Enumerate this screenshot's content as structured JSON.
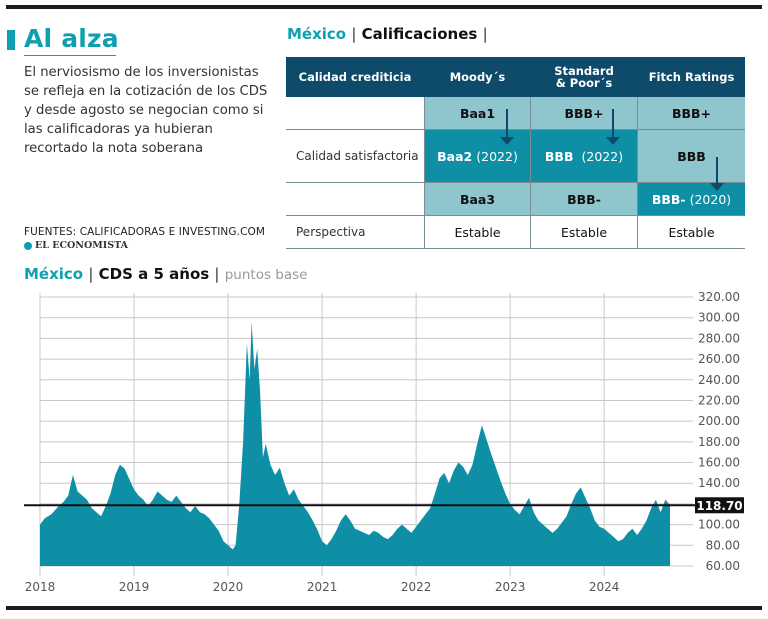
{
  "intro": {
    "headline": "Al alza",
    "text": "El nerviosismo de los inversionistas se refleja en la cotización de los CDS y desde agosto se negocian como si las calificadoras ya hubieran recortado la nota soberana",
    "sources": "FUENTES: CALIFICADORAS E INVESTING.COM",
    "brand": "EL ECONOMISTA"
  },
  "ratings": {
    "title_country": "México",
    "title_sep": "|",
    "title_main": "Calificaciones",
    "title_end": "|",
    "headers": [
      "Calidad crediticia",
      "Moody´s",
      "Standard & Poor´s",
      "Fitch Ratings"
    ],
    "row_labels": {
      "satisfactory": "Calidad satisfactoria",
      "outlook": "Perspectiva"
    },
    "moodys": {
      "r1": "Baa1",
      "r2": "Baa2",
      "r2_year": "(2022)",
      "r3": "Baa3"
    },
    "sp": {
      "r1": "BBB+",
      "r2": "BBB",
      "r2_year": "(2022)",
      "r3": "BBB-"
    },
    "fitch": {
      "r1": "BBB+",
      "r2": "BBB",
      "r3": "BBB-",
      "r3_year": "(2020)"
    },
    "outlook": [
      "Estable",
      "Estable",
      "Estable"
    ]
  },
  "chart_title": {
    "country": "México",
    "sep": "|",
    "main": "CDS a 5 años",
    "sep2": "|",
    "unit": "puntos base"
  },
  "chart_data": {
    "type": "area",
    "title": "CDS a 5 años",
    "ylabel": "puntos base",
    "ylim": [
      60,
      320
    ],
    "yticks": [
      "60.00",
      "80.00",
      "100.00",
      "120.00",
      "140.00",
      "160.00",
      "180.00",
      "200.00",
      "220.00",
      "240.00",
      "260.00",
      "280.00",
      "300.00",
      "320.00"
    ],
    "xticks": [
      "2018",
      "2019",
      "2020",
      "2021",
      "2022",
      "2023",
      "2024"
    ],
    "xlim": [
      2018.0,
      2024.7
    ],
    "reference": {
      "value": 118.7,
      "label": "118.70"
    },
    "colors": {
      "area": "#0f8fa5",
      "line": "#111111",
      "grid": "#c8c8c8"
    },
    "series": [
      {
        "name": "CDS 5 años",
        "points": [
          [
            2018.0,
            100
          ],
          [
            2018.05,
            106
          ],
          [
            2018.12,
            110
          ],
          [
            2018.2,
            118
          ],
          [
            2018.25,
            122
          ],
          [
            2018.3,
            128
          ],
          [
            2018.35,
            148
          ],
          [
            2018.4,
            132
          ],
          [
            2018.45,
            128
          ],
          [
            2018.5,
            124
          ],
          [
            2018.55,
            116
          ],
          [
            2018.6,
            112
          ],
          [
            2018.65,
            108
          ],
          [
            2018.7,
            118
          ],
          [
            2018.75,
            130
          ],
          [
            2018.8,
            148
          ],
          [
            2018.85,
            158
          ],
          [
            2018.9,
            154
          ],
          [
            2018.95,
            144
          ],
          [
            2019.0,
            134
          ],
          [
            2019.05,
            128
          ],
          [
            2019.1,
            124
          ],
          [
            2019.15,
            118
          ],
          [
            2019.2,
            124
          ],
          [
            2019.25,
            132
          ],
          [
            2019.3,
            128
          ],
          [
            2019.35,
            124
          ],
          [
            2019.4,
            122
          ],
          [
            2019.45,
            128
          ],
          [
            2019.5,
            122
          ],
          [
            2019.55,
            116
          ],
          [
            2019.6,
            112
          ],
          [
            2019.65,
            118
          ],
          [
            2019.7,
            112
          ],
          [
            2019.75,
            110
          ],
          [
            2019.8,
            106
          ],
          [
            2019.85,
            100
          ],
          [
            2019.9,
            94
          ],
          [
            2019.95,
            84
          ],
          [
            2020.0,
            80
          ],
          [
            2020.05,
            76
          ],
          [
            2020.08,
            80
          ],
          [
            2020.12,
            120
          ],
          [
            2020.16,
            180
          ],
          [
            2020.2,
            275
          ],
          [
            2020.23,
            240
          ],
          [
            2020.25,
            296
          ],
          [
            2020.28,
            250
          ],
          [
            2020.31,
            270
          ],
          [
            2020.34,
            230
          ],
          [
            2020.37,
            165
          ],
          [
            2020.4,
            178
          ],
          [
            2020.45,
            158
          ],
          [
            2020.5,
            148
          ],
          [
            2020.55,
            155
          ],
          [
            2020.6,
            140
          ],
          [
            2020.65,
            128
          ],
          [
            2020.7,
            134
          ],
          [
            2020.75,
            124
          ],
          [
            2020.8,
            118
          ],
          [
            2020.85,
            112
          ],
          [
            2020.9,
            104
          ],
          [
            2020.95,
            95
          ],
          [
            2021.0,
            84
          ],
          [
            2021.05,
            80
          ],
          [
            2021.1,
            86
          ],
          [
            2021.15,
            94
          ],
          [
            2021.2,
            104
          ],
          [
            2021.25,
            110
          ],
          [
            2021.3,
            104
          ],
          [
            2021.35,
            96
          ],
          [
            2021.4,
            94
          ],
          [
            2021.45,
            92
          ],
          [
            2021.5,
            90
          ],
          [
            2021.55,
            94
          ],
          [
            2021.6,
            92
          ],
          [
            2021.65,
            88
          ],
          [
            2021.7,
            86
          ],
          [
            2021.75,
            90
          ],
          [
            2021.8,
            96
          ],
          [
            2021.85,
            100
          ],
          [
            2021.9,
            96
          ],
          [
            2021.95,
            92
          ],
          [
            2022.0,
            98
          ],
          [
            2022.05,
            104
          ],
          [
            2022.1,
            110
          ],
          [
            2022.15,
            116
          ],
          [
            2022.2,
            130
          ],
          [
            2022.25,
            145
          ],
          [
            2022.3,
            150
          ],
          [
            2022.35,
            140
          ],
          [
            2022.4,
            152
          ],
          [
            2022.45,
            160
          ],
          [
            2022.5,
            156
          ],
          [
            2022.55,
            148
          ],
          [
            2022.6,
            158
          ],
          [
            2022.65,
            178
          ],
          [
            2022.7,
            196
          ],
          [
            2022.75,
            182
          ],
          [
            2022.8,
            168
          ],
          [
            2022.85,
            155
          ],
          [
            2022.9,
            142
          ],
          [
            2022.95,
            130
          ],
          [
            2023.0,
            120
          ],
          [
            2023.05,
            114
          ],
          [
            2023.1,
            110
          ],
          [
            2023.15,
            118
          ],
          [
            2023.2,
            126
          ],
          [
            2023.25,
            112
          ],
          [
            2023.3,
            104
          ],
          [
            2023.35,
            100
          ],
          [
            2023.4,
            96
          ],
          [
            2023.45,
            92
          ],
          [
            2023.5,
            96
          ],
          [
            2023.55,
            102
          ],
          [
            2023.6,
            108
          ],
          [
            2023.65,
            120
          ],
          [
            2023.7,
            130
          ],
          [
            2023.75,
            136
          ],
          [
            2023.8,
            126
          ],
          [
            2023.85,
            116
          ],
          [
            2023.9,
            104
          ],
          [
            2023.95,
            98
          ],
          [
            2024.0,
            96
          ],
          [
            2024.05,
            92
          ],
          [
            2024.1,
            88
          ],
          [
            2024.15,
            84
          ],
          [
            2024.2,
            86
          ],
          [
            2024.25,
            92
          ],
          [
            2024.3,
            96
          ],
          [
            2024.35,
            90
          ],
          [
            2024.4,
            96
          ],
          [
            2024.45,
            104
          ],
          [
            2024.5,
            116
          ],
          [
            2024.55,
            124
          ],
          [
            2024.6,
            112
          ],
          [
            2024.65,
            124
          ],
          [
            2024.7,
            119
          ]
        ]
      }
    ]
  }
}
